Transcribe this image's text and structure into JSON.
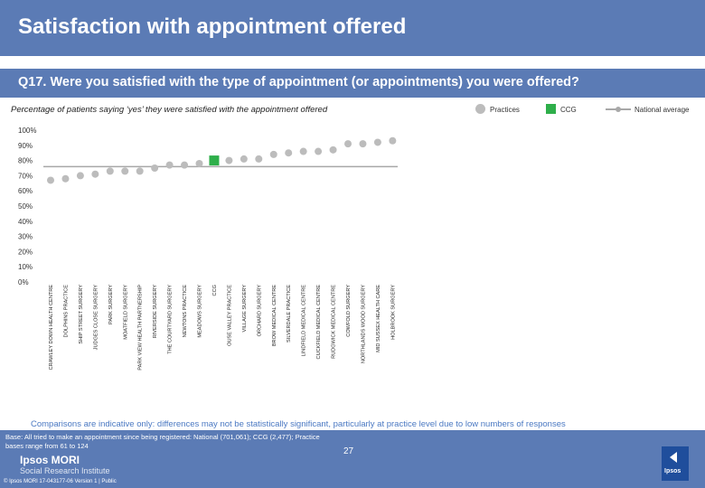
{
  "header": {
    "title": "Satisfaction with appointment offered",
    "question": "Q17. Were you satisfied with the type of appointment (or appointments) you were offered?"
  },
  "chart_data": {
    "type": "scatter",
    "subtitle": "Percentage of patients saying ‘yes’ they were satisfied with the appointment offered",
    "legend": [
      {
        "name": "Practices",
        "marker": "grey-dot"
      },
      {
        "name": "CCG",
        "marker": "green-square"
      },
      {
        "name": "National average",
        "marker": "grey-line"
      }
    ],
    "legend_position": "top-right",
    "y_ticks": [
      "0%",
      "10%",
      "20%",
      "30%",
      "40%",
      "50%",
      "60%",
      "70%",
      "80%",
      "90%",
      "100%"
    ],
    "ylim": [
      0,
      100
    ],
    "grid": false,
    "national_average": 76,
    "categories": [
      "CRAWLEY DOWN HEALTH CENTRE",
      "DOLPHINS PRACTICE",
      "SHIP STREET SURGERY",
      "JUDGES CLOSE SURGERY",
      "PARK SURGERY",
      "MOATFIELD SURGERY",
      "PARK VIEW HEALTH PARTNERSHIP",
      "RIVERSIDE SURGERY",
      "THE COURTYARD SURGERY",
      "NEWTONS PRACTICE",
      "MEADOWS SURGERY",
      "CCG",
      "OUSE VALLEY PRACTICE",
      "VILLAGE SURGERY",
      "ORCHARD SURGERY",
      "BROW MEDICAL CENTRE",
      "SILVERDALE PRACTICE",
      "LINDFIELD MEDICAL CENTRE",
      "CUCKFIELD MEDICAL CENTRE",
      "RUDGWICK MEDICAL CENTRE",
      "COWFOLD SURGERY",
      "NORTHLANDS WOOD SURGERY",
      "MID SUSSEX HEALTH CARE",
      "HOLBROOK SURGERY"
    ],
    "values": [
      67,
      68,
      70,
      71,
      73,
      73,
      73,
      75,
      77,
      77,
      78,
      80,
      80,
      81,
      81,
      84,
      85,
      86,
      86,
      87,
      91,
      91,
      92,
      93
    ],
    "highlight_category": "CCG",
    "colors": {
      "practice": "#bcbcbc",
      "ccg": "#2eaf4a",
      "national": "#a8a8a8"
    }
  },
  "note": "Comparisons are indicative only: differences may not be statistically significant, particularly at practice level due to low numbers of responses",
  "footer": {
    "base": "Base: All tried to make an appointment since being registered: National (701,061); CCG (2,477); Practice bases range from 61 to 124",
    "logo_line1": "Ipsos MORI",
    "logo_line2": "Social Research Institute",
    "page_number": "27",
    "copyright": "© Ipsos MORI     17-043177-06 Version 1 | Public",
    "badge": "Ipsos",
    "bar_color": "#5b7bb5"
  }
}
